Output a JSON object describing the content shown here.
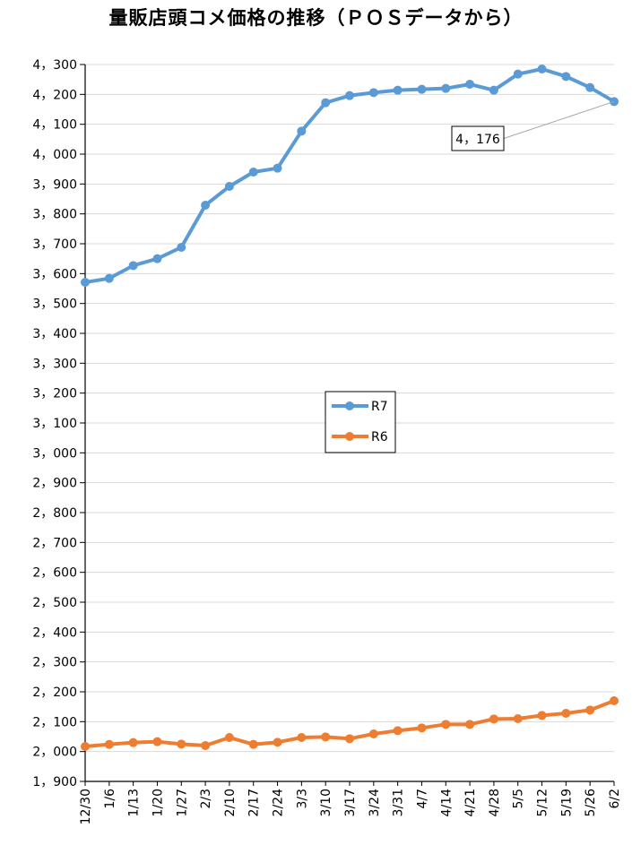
{
  "chart_data": {
    "type": "line",
    "title": "量販店頭コメ価格の推移（ＰＯＳデータから）",
    "xlabel": "",
    "ylabel": "",
    "ylim": [
      1900,
      4300
    ],
    "ytick_step": 100,
    "grid": true,
    "legend_position": "center",
    "categories": [
      "12/30",
      "1/6",
      "1/13",
      "1/20",
      "1/27",
      "2/3",
      "2/10",
      "2/17",
      "2/24",
      "3/3",
      "3/10",
      "3/17",
      "3/24",
      "3/31",
      "4/7",
      "4/14",
      "4/21",
      "4/28",
      "5/5",
      "5/12",
      "5/19",
      "5/26",
      "6/2"
    ],
    "series": [
      {
        "name": "R7",
        "color": "#5b9bd5",
        "values": [
          3571,
          3584,
          3627,
          3650,
          3688,
          3829,
          3892,
          3940,
          3953,
          4077,
          4172,
          4196,
          4206,
          4214,
          4217,
          4220,
          4234,
          4214,
          4268,
          4285,
          4260,
          4223,
          4176
        ]
      },
      {
        "name": "R6",
        "color": "#ed7d31",
        "values": [
          2017,
          2024,
          2030,
          2033,
          2025,
          2020,
          2047,
          2024,
          2031,
          2047,
          2049,
          2043,
          2059,
          2070,
          2079,
          2091,
          2091,
          2109,
          2110,
          2121,
          2128,
          2139,
          2170
        ]
      }
    ],
    "annotations": [
      {
        "series": "R7",
        "category": "6/2",
        "text": "4，176"
      }
    ]
  }
}
